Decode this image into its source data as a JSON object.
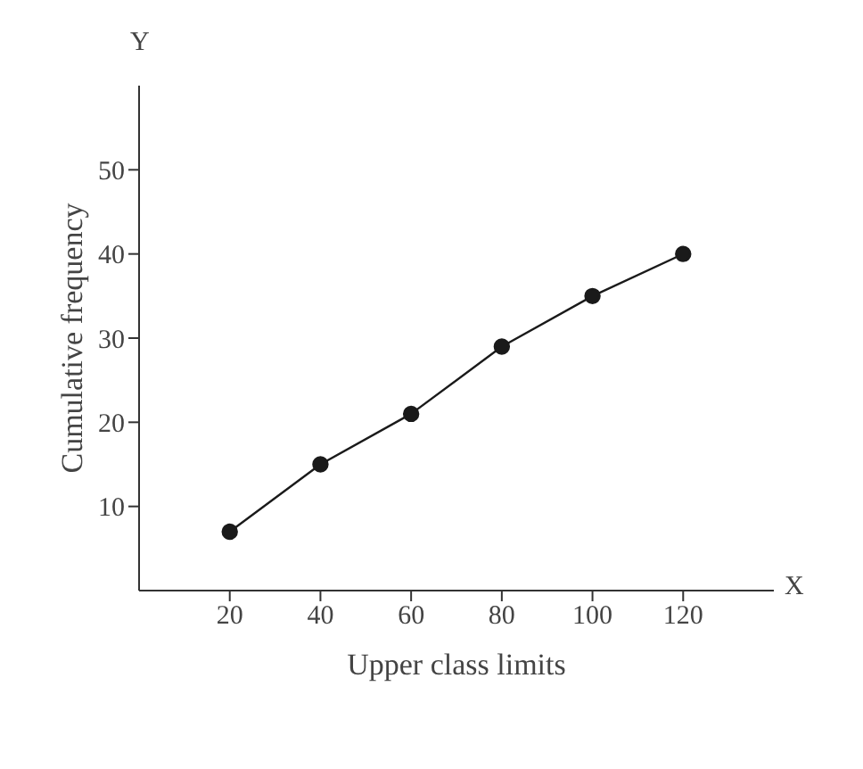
{
  "chart_data": {
    "type": "line",
    "xlabel": "Upper class limits",
    "ylabel": "Cumulative frequency",
    "annotations": [
      "Y",
      "X"
    ],
    "x": [
      20,
      40,
      60,
      80,
      100,
      120
    ],
    "series": [
      {
        "color": "#1a1a1a",
        "values": [
          7,
          15,
          21,
          29,
          35,
          40
        ]
      }
    ],
    "xlim": [
      0,
      140
    ],
    "xticks": [
      20,
      40,
      60,
      80,
      100,
      120
    ],
    "ylim": [
      0,
      60
    ],
    "yticks": [
      10,
      20,
      30,
      40,
      50
    ],
    "marker": "circle",
    "line_style": "solid"
  }
}
